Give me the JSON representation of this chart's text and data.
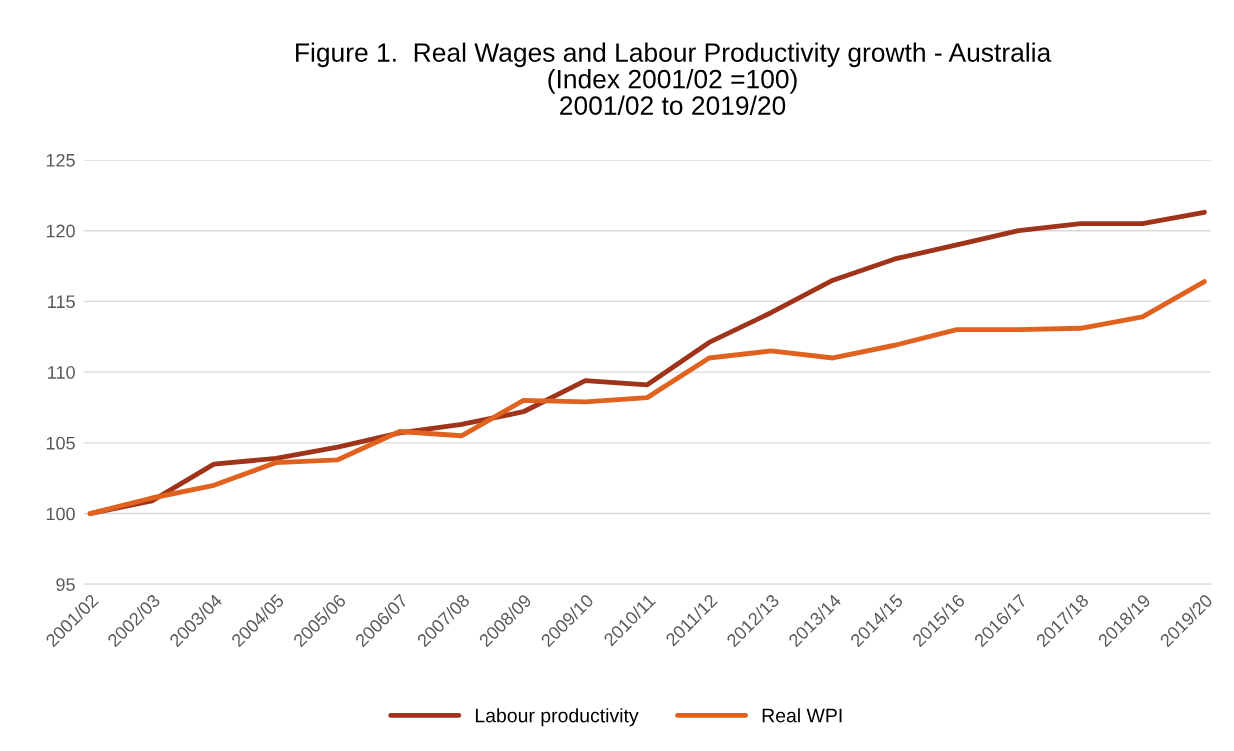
{
  "chart_data": {
    "type": "line",
    "title": "Figure 1.  Real Wages and Labour Productivity growth - Australia\n(Index 2001/02 =100)\n2001/02 to 2019/20",
    "categories": [
      "2001/02",
      "2002/03",
      "2003/04",
      "2004/05",
      "2005/06",
      "2006/07",
      "2007/08",
      "2008/09",
      "2009/10",
      "2010/11",
      "2011/12",
      "2012/13",
      "2013/14",
      "2014/15",
      "2015/16",
      "2016/17",
      "2017/18",
      "2018/19",
      "2019/20"
    ],
    "series": [
      {
        "name": "Labour productivity",
        "color": "#a0341a",
        "values": [
          100,
          100.9,
          103.5,
          103.9,
          104.7,
          105.7,
          106.3,
          107.2,
          109.4,
          109.1,
          112.1,
          114.2,
          116.5,
          118.0,
          119.0,
          120.0,
          120.5,
          120.5,
          121.3
        ]
      },
      {
        "name": "Real WPI",
        "color": "#e0621e",
        "values": [
          100,
          101.1,
          102.0,
          103.6,
          103.8,
          105.8,
          105.5,
          108.0,
          107.9,
          108.2,
          111.0,
          111.5,
          111.0,
          111.9,
          113.0,
          113.0,
          113.1,
          113.9,
          116.4
        ]
      }
    ],
    "ylim": [
      95,
      125
    ],
    "yticks": [
      95,
      100,
      105,
      110,
      115,
      120,
      125
    ],
    "grid": "y",
    "legend": "bottom",
    "marker": "none",
    "line_style": "solid"
  }
}
